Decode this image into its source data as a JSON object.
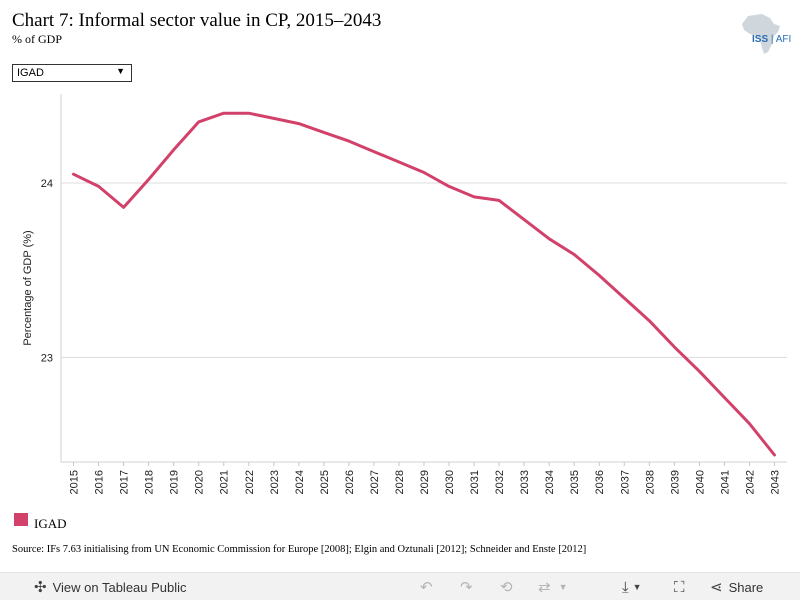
{
  "header": {
    "title": "Chart 7: Informal sector value in CP, 2015–2043",
    "subtitle": "% of GDP",
    "logo_text_bold": "ISS",
    "logo_text_rest": "AFI"
  },
  "filter": {
    "selected": "IGAD"
  },
  "colors": {
    "series": "#d2416a",
    "grid": "#dcdcdc"
  },
  "chart_data": {
    "type": "line",
    "title": "",
    "xlabel": "",
    "ylabel": "Percentage of GDP (%)",
    "ylim": [
      22.4,
      24.51
    ],
    "yticks": [
      23,
      24
    ],
    "grid": true,
    "legend_position": "bottom-left",
    "x": [
      "2015",
      "2016",
      "2017",
      "2018",
      "2019",
      "2020",
      "2021",
      "2022",
      "2023",
      "2024",
      "2025",
      "2026",
      "2027",
      "2028",
      "2029",
      "2030",
      "2031",
      "2032",
      "2033",
      "2034",
      "2035",
      "2036",
      "2037",
      "2038",
      "2039",
      "2040",
      "2041",
      "2042",
      "2043"
    ],
    "series": [
      {
        "name": "IGAD",
        "values": [
          24.05,
          23.98,
          23.86,
          24.02,
          24.19,
          24.35,
          24.4,
          24.4,
          24.37,
          24.34,
          24.29,
          24.24,
          24.18,
          24.12,
          24.06,
          23.98,
          23.92,
          23.9,
          23.79,
          23.68,
          23.59,
          23.47,
          23.34,
          23.21,
          23.06,
          22.92,
          22.77,
          22.62,
          22.44
        ]
      }
    ]
  },
  "source": "Source: IFs 7.63 initialising from UN Economic Commission for Europe [2008]; Elgin and Oztunali [2012]; Schneider and Enste [2012]",
  "toolbar": {
    "view_label": "View on Tableau Public",
    "share_label": "Share"
  }
}
